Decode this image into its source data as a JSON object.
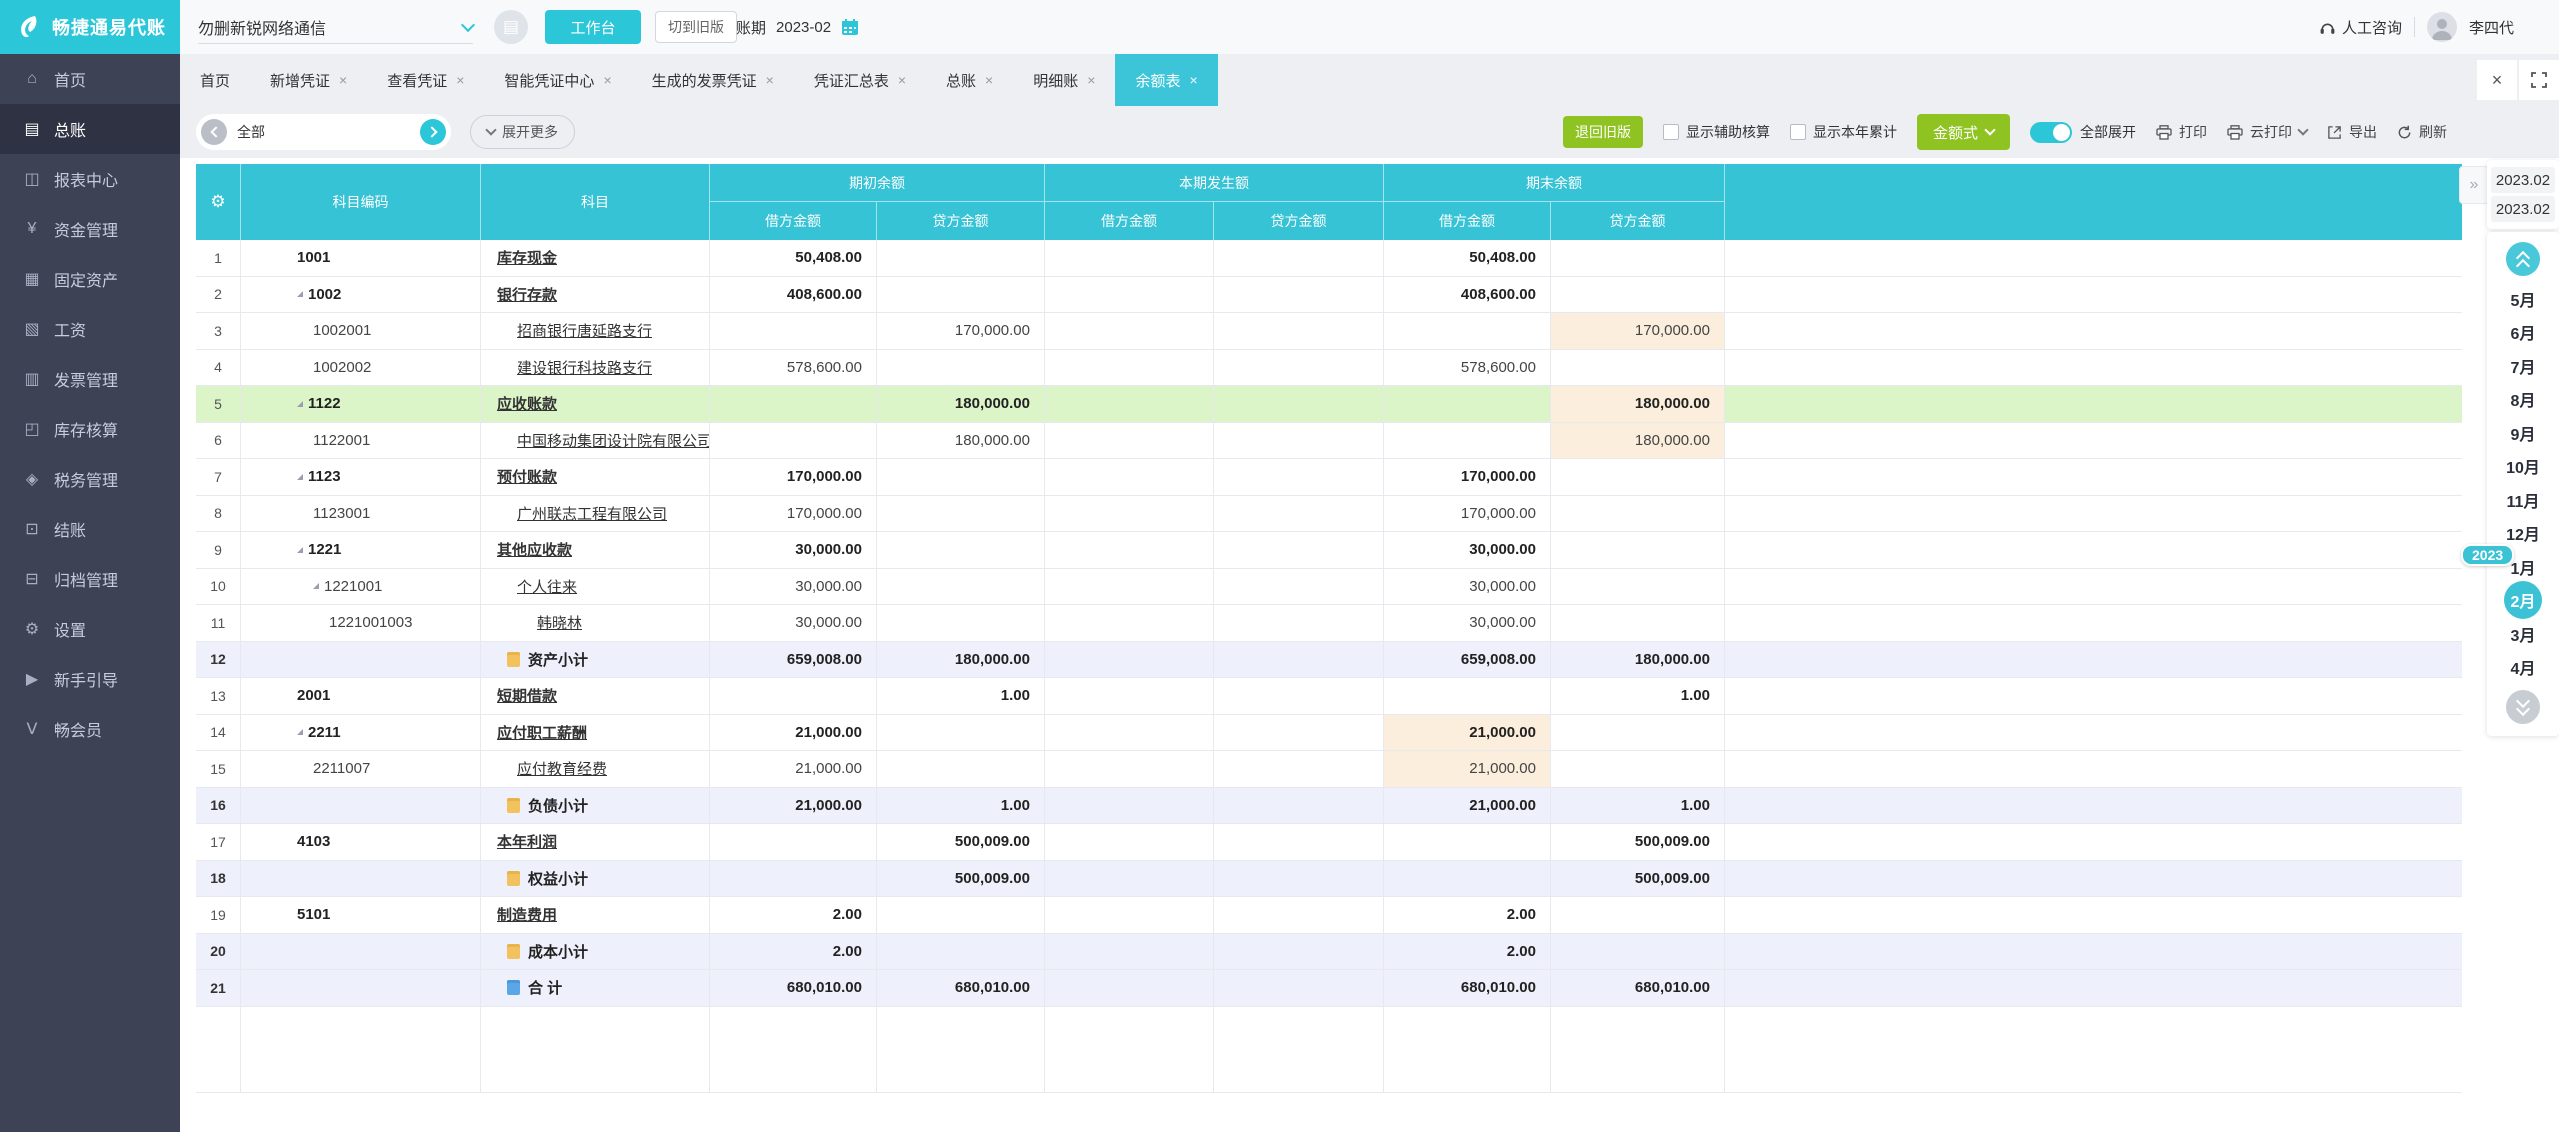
{
  "brand": {
    "name": "畅捷通易代账"
  },
  "colors": {
    "accent_teal": "#2cc6d9",
    "header_teal": "#36c3d6",
    "button_green": "#8fc321",
    "sidebar_dark": "#3d4255",
    "row_green": "#dcf5c8",
    "row_blue": "#eef1fb",
    "cell_orange": "#fbeedc"
  },
  "topbar": {
    "company": "勿删新锐网络通信",
    "workbench": "工作台",
    "switch_old": "切到旧版",
    "period_label": "账期",
    "period_value": "2023-02",
    "consult": "人工咨询",
    "user": "李四代"
  },
  "sidebar": {
    "items": [
      {
        "label": "首页",
        "icon": "home",
        "glyph": "⌂",
        "active": false
      },
      {
        "label": "总账",
        "icon": "general-ledger",
        "glyph": "▤",
        "active": true
      },
      {
        "label": "报表中心",
        "icon": "report-center",
        "glyph": "◫",
        "active": false
      },
      {
        "label": "资金管理",
        "icon": "funds",
        "glyph": "¥",
        "active": false
      },
      {
        "label": "固定资产",
        "icon": "fixed-assets",
        "glyph": "▦",
        "active": false
      },
      {
        "label": "工资",
        "icon": "salary",
        "glyph": "▧",
        "active": false
      },
      {
        "label": "发票管理",
        "icon": "invoice",
        "glyph": "▥",
        "active": false
      },
      {
        "label": "库存核算",
        "icon": "inventory",
        "glyph": "◰",
        "active": false
      },
      {
        "label": "税务管理",
        "icon": "tax",
        "glyph": "◈",
        "active": false
      },
      {
        "label": "结账",
        "icon": "closing",
        "glyph": "⊡",
        "active": false
      },
      {
        "label": "归档管理",
        "icon": "archive",
        "glyph": "⊟",
        "active": false
      },
      {
        "label": "设置",
        "icon": "settings",
        "glyph": "⚙",
        "active": false
      },
      {
        "label": "新手引导",
        "icon": "guide",
        "glyph": "▶",
        "active": false
      },
      {
        "label": "畅会员",
        "icon": "member",
        "glyph": "Ⅴ",
        "active": false
      }
    ]
  },
  "tabs": {
    "close_glyph": "×",
    "items": [
      {
        "label": "首页",
        "closable": false,
        "active": false
      },
      {
        "label": "新增凭证",
        "closable": true,
        "active": false
      },
      {
        "label": "查看凭证",
        "closable": true,
        "active": false
      },
      {
        "label": "智能凭证中心",
        "closable": true,
        "active": false
      },
      {
        "label": "生成的发票凭证",
        "closable": true,
        "active": false
      },
      {
        "label": "凭证汇总表",
        "closable": true,
        "active": false
      },
      {
        "label": "总账",
        "closable": true,
        "active": false
      },
      {
        "label": "明细账",
        "closable": true,
        "active": false
      },
      {
        "label": "余额表",
        "closable": true,
        "active": true
      }
    ]
  },
  "toolbar": {
    "filter_value": "全部",
    "expand_more": "展开更多",
    "back_old": "退回旧版",
    "cb_aux": "显示辅助核算",
    "cb_year": "显示本年累计",
    "amount_style": "金额式",
    "expand_all": "全部展开",
    "print": "打印",
    "cloud_print": "云打印",
    "export": "导出",
    "refresh": "刷新"
  },
  "table": {
    "headers": {
      "code": "科目编码",
      "subject": "科目",
      "group_opening": "期初余额",
      "group_current": "本期发生额",
      "group_closing": "期末余额",
      "debit": "借方金额",
      "credit": "贷方金额"
    },
    "rows": [
      {
        "num": "1",
        "code": "1001",
        "name": "库存现金",
        "level": 0,
        "tri": false,
        "bold": true,
        "bg": "",
        "icon": "",
        "a": [
          "50,408.00",
          "",
          "",
          "",
          "50,408.00",
          ""
        ],
        "orange": []
      },
      {
        "num": "2",
        "code": "1002",
        "name": "银行存款",
        "level": 0,
        "tri": true,
        "bold": true,
        "bg": "",
        "icon": "",
        "a": [
          "408,600.00",
          "",
          "",
          "",
          "408,600.00",
          ""
        ],
        "orange": []
      },
      {
        "num": "3",
        "code": "1002001",
        "name": "招商银行唐延路支行",
        "level": 1,
        "tri": false,
        "bold": false,
        "bg": "",
        "icon": "",
        "a": [
          "",
          "170,000.00",
          "",
          "",
          "",
          "170,000.00"
        ],
        "orange": [
          5
        ]
      },
      {
        "num": "4",
        "code": "1002002",
        "name": "建设银行科技路支行",
        "level": 1,
        "tri": false,
        "bold": false,
        "bg": "",
        "icon": "",
        "a": [
          "578,600.00",
          "",
          "",
          "",
          "578,600.00",
          ""
        ],
        "orange": []
      },
      {
        "num": "5",
        "code": "1122",
        "name": "应收账款",
        "level": 0,
        "tri": true,
        "bold": true,
        "bg": "green",
        "icon": "",
        "a": [
          "",
          "180,000.00",
          "",
          "",
          "",
          "180,000.00"
        ],
        "orange": [
          5
        ]
      },
      {
        "num": "6",
        "code": "1122001",
        "name": "中国移动集团设计院有限公司陕",
        "level": 1,
        "tri": false,
        "bold": false,
        "bg": "",
        "icon": "",
        "a": [
          "",
          "180,000.00",
          "",
          "",
          "",
          "180,000.00"
        ],
        "orange": [
          5
        ]
      },
      {
        "num": "7",
        "code": "1123",
        "name": "预付账款",
        "level": 0,
        "tri": true,
        "bold": true,
        "bg": "",
        "icon": "",
        "a": [
          "170,000.00",
          "",
          "",
          "",
          "170,000.00",
          ""
        ],
        "orange": []
      },
      {
        "num": "8",
        "code": "1123001",
        "name": "广州联志工程有限公司",
        "level": 1,
        "tri": false,
        "bold": false,
        "bg": "",
        "icon": "",
        "a": [
          "170,000.00",
          "",
          "",
          "",
          "170,000.00",
          ""
        ],
        "orange": []
      },
      {
        "num": "9",
        "code": "1221",
        "name": "其他应收款",
        "level": 0,
        "tri": true,
        "bold": true,
        "bg": "",
        "icon": "",
        "a": [
          "30,000.00",
          "",
          "",
          "",
          "30,000.00",
          ""
        ],
        "orange": []
      },
      {
        "num": "10",
        "code": "1221001",
        "name": "个人往来",
        "level": 1,
        "tri": true,
        "bold": false,
        "bg": "",
        "icon": "",
        "a": [
          "30,000.00",
          "",
          "",
          "",
          "30,000.00",
          ""
        ],
        "orange": []
      },
      {
        "num": "11",
        "code": "1221001003",
        "name": "韩晓林",
        "level": 2,
        "tri": false,
        "bold": false,
        "bg": "",
        "icon": "",
        "a": [
          "30,000.00",
          "",
          "",
          "",
          "30,000.00",
          ""
        ],
        "orange": []
      },
      {
        "num": "12",
        "code": "",
        "name": "资产小计",
        "level": 0,
        "tri": false,
        "bold": true,
        "bg": "blue",
        "icon": "yellow",
        "a": [
          "659,008.00",
          "180,000.00",
          "",
          "",
          "659,008.00",
          "180,000.00"
        ],
        "orange": []
      },
      {
        "num": "13",
        "code": "2001",
        "name": "短期借款",
        "level": 0,
        "tri": false,
        "bold": true,
        "bg": "",
        "icon": "",
        "a": [
          "",
          "1.00",
          "",
          "",
          "",
          "1.00"
        ],
        "orange": []
      },
      {
        "num": "14",
        "code": "2211",
        "name": "应付职工薪酬",
        "level": 0,
        "tri": true,
        "bold": true,
        "bg": "",
        "icon": "",
        "a": [
          "21,000.00",
          "",
          "",
          "",
          "21,000.00",
          ""
        ],
        "orange": [
          4
        ]
      },
      {
        "num": "15",
        "code": "2211007",
        "name": "应付教育经费",
        "level": 1,
        "tri": false,
        "bold": false,
        "bg": "",
        "icon": "",
        "a": [
          "21,000.00",
          "",
          "",
          "",
          "21,000.00",
          ""
        ],
        "orange": [
          4
        ]
      },
      {
        "num": "16",
        "code": "",
        "name": "负债小计",
        "level": 0,
        "tri": false,
        "bold": true,
        "bg": "blue",
        "icon": "yellow",
        "a": [
          "21,000.00",
          "1.00",
          "",
          "",
          "21,000.00",
          "1.00"
        ],
        "orange": []
      },
      {
        "num": "17",
        "code": "4103",
        "name": "本年利润",
        "level": 0,
        "tri": false,
        "bold": true,
        "bg": "",
        "icon": "",
        "a": [
          "",
          "500,009.00",
          "",
          "",
          "",
          "500,009.00"
        ],
        "orange": []
      },
      {
        "num": "18",
        "code": "",
        "name": "权益小计",
        "level": 0,
        "tri": false,
        "bold": true,
        "bg": "blue",
        "icon": "yellow",
        "a": [
          "",
          "500,009.00",
          "",
          "",
          "",
          "500,009.00"
        ],
        "orange": []
      },
      {
        "num": "19",
        "code": "5101",
        "name": "制造费用",
        "level": 0,
        "tri": false,
        "bold": true,
        "bg": "",
        "icon": "",
        "a": [
          "2.00",
          "",
          "",
          "",
          "2.00",
          ""
        ],
        "orange": []
      },
      {
        "num": "20",
        "code": "",
        "name": "成本小计",
        "level": 0,
        "tri": false,
        "bold": true,
        "bg": "blue",
        "icon": "yellow",
        "a": [
          "2.00",
          "",
          "",
          "",
          "2.00",
          ""
        ],
        "orange": []
      },
      {
        "num": "21",
        "code": "",
        "name": "合 计",
        "level": 0,
        "tri": false,
        "bold": true,
        "bg": "blue",
        "icon": "blue",
        "a": [
          "680,010.00",
          "680,010.00",
          "",
          "",
          "680,010.00",
          "680,010.00"
        ],
        "orange": []
      }
    ]
  },
  "right_panel": {
    "collapse_glyph": "»",
    "periods": [
      "2023.02",
      "2023.02"
    ],
    "year_badge": "2023",
    "months": [
      {
        "label": "5月",
        "selected": false,
        "year_badge": false
      },
      {
        "label": "6月",
        "selected": false,
        "year_badge": false
      },
      {
        "label": "7月",
        "selected": false,
        "year_badge": false
      },
      {
        "label": "8月",
        "selected": false,
        "year_badge": false
      },
      {
        "label": "9月",
        "selected": false,
        "year_badge": false
      },
      {
        "label": "10月",
        "selected": false,
        "year_badge": false
      },
      {
        "label": "11月",
        "selected": false,
        "year_badge": false
      },
      {
        "label": "12月",
        "selected": false,
        "year_badge": false
      },
      {
        "label": "1月",
        "selected": false,
        "year_badge": true
      },
      {
        "label": "2月",
        "selected": true,
        "year_badge": false
      },
      {
        "label": "3月",
        "selected": false,
        "year_badge": false
      },
      {
        "label": "4月",
        "selected": false,
        "year_badge": false
      }
    ]
  }
}
